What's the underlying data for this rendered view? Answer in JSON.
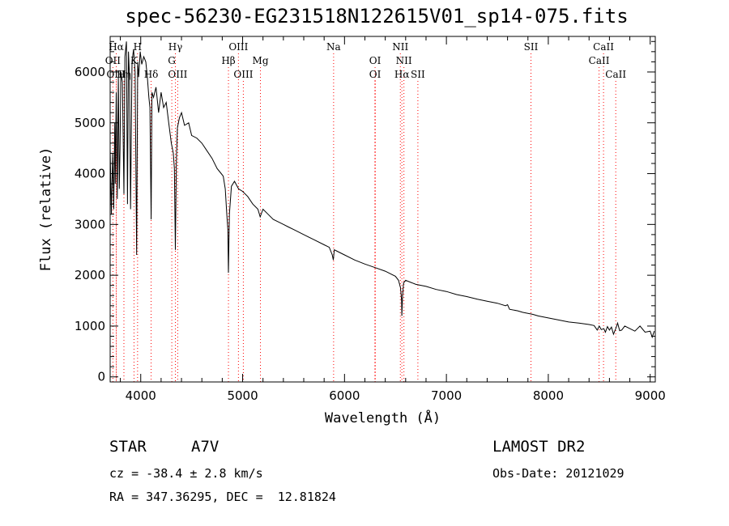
{
  "chart_data": {
    "type": "line",
    "title": "spec-56230-EG231518N122615V01_sp14-075.fits",
    "xlabel": "Wavelength (Å)",
    "ylabel": "Flux (relative)",
    "xlim": [
      3700,
      9050
    ],
    "ylim": [
      -100,
      6700
    ],
    "xticks": [
      4000,
      5000,
      6000,
      7000,
      8000,
      9000
    ],
    "yticks": [
      0,
      1000,
      2000,
      3000,
      4000,
      5000,
      6000
    ],
    "grid": false,
    "series": [
      {
        "color": "#000000",
        "x": [
          3700,
          3712,
          3725,
          3735,
          3745,
          3750,
          3760,
          3770,
          3780,
          3790,
          3797,
          3805,
          3820,
          3835,
          3845,
          3860,
          3870,
          3880,
          3890,
          3900,
          3915,
          3930,
          3945,
          3960,
          3970,
          3980,
          3995,
          4010,
          4030,
          4050,
          4065,
          4080,
          4090,
          4102,
          4110,
          4125,
          4150,
          4175,
          4200,
          4225,
          4250,
          4275,
          4300,
          4320,
          4330,
          4340,
          4350,
          4360,
          4380,
          4400,
          4430,
          4470,
          4500,
          4550,
          4600,
          4650,
          4700,
          4750,
          4790,
          4810,
          4830,
          4845,
          4855,
          4861,
          4870,
          4890,
          4920,
          4960,
          5000,
          5050,
          5100,
          5150,
          5172,
          5200,
          5250,
          5300,
          5350,
          5400,
          5450,
          5500,
          5600,
          5700,
          5800,
          5850,
          5880,
          5890,
          5900,
          5920,
          6000,
          6100,
          6200,
          6300,
          6400,
          6500,
          6530,
          6550,
          6560,
          6563,
          6570,
          6580,
          6600,
          6700,
          6800,
          6900,
          7000,
          7100,
          7200,
          7300,
          7400,
          7500,
          7580,
          7600,
          7620,
          7700,
          7750,
          7800,
          7850,
          7900,
          8000,
          8100,
          8200,
          8300,
          8400,
          8450,
          8480,
          8500,
          8520,
          8545,
          8560,
          8580,
          8600,
          8620,
          8640,
          8662,
          8680,
          8700,
          8720,
          8750,
          8800,
          8850,
          8900,
          8950,
          9000,
          9020,
          9040
        ],
        "y": [
          4500,
          3200,
          4400,
          3300,
          5000,
          3800,
          5600,
          3500,
          5900,
          3700,
          4500,
          6000,
          5800,
          3600,
          6300,
          6600,
          3400,
          6400,
          5900,
          3300,
          6200,
          6450,
          6000,
          2400,
          6200,
          5900,
          6400,
          6150,
          6300,
          6200,
          5900,
          5500,
          5300,
          3100,
          5600,
          5500,
          5700,
          5200,
          5600,
          5300,
          5400,
          5000,
          4600,
          4400,
          4100,
          2500,
          4300,
          4900,
          5100,
          5200,
          4950,
          5000,
          4750,
          4700,
          4600,
          4450,
          4300,
          4100,
          4000,
          3950,
          3700,
          3200,
          2900,
          2050,
          3200,
          3750,
          3850,
          3700,
          3650,
          3550,
          3400,
          3300,
          3150,
          3300,
          3200,
          3100,
          3050,
          3000,
          2950,
          2900,
          2800,
          2700,
          2600,
          2550,
          2400,
          2300,
          2500,
          2480,
          2400,
          2300,
          2220,
          2150,
          2080,
          1980,
          1900,
          1750,
          1500,
          1200,
          1600,
          1850,
          1900,
          1820,
          1780,
          1720,
          1680,
          1620,
          1580,
          1530,
          1490,
          1450,
          1400,
          1420,
          1330,
          1300,
          1270,
          1250,
          1230,
          1200,
          1160,
          1120,
          1080,
          1060,
          1030,
          1010,
          920,
          1000,
          930,
          950,
          880,
          990,
          920,
          980,
          840,
          950,
          1060,
          910,
          920,
          1000,
          950,
          900,
          1000,
          880,
          900,
          780,
          900
        ]
      }
    ],
    "line_markers": [
      {
        "label": "Hα",
        "wl": 3760,
        "color": "#ff0000",
        "row": 1
      },
      {
        "label": "OII",
        "wl": 3727,
        "color": "#ff0000",
        "row": 2
      },
      {
        "label": "OIII",
        "wl": 3760,
        "color": "#ff0000",
        "row": 3
      },
      {
        "label": "H",
        "wl": 3969,
        "color": "#ff0000",
        "row": 1
      },
      {
        "label": "K",
        "wl": 3934,
        "color": "#ff0000",
        "row": 2
      },
      {
        "label": "Hη",
        "wl": 3835,
        "color": "#ff0000",
        "row": 3
      },
      {
        "label": "Hδ",
        "wl": 4102,
        "color": "#ff0000",
        "row": 3
      },
      {
        "label": "Hγ",
        "wl": 4340,
        "color": "#ff0000",
        "row": 1
      },
      {
        "label": "G",
        "wl": 4305,
        "color": "#ff0000",
        "row": 2
      },
      {
        "label": "OIII",
        "wl": 4363,
        "color": "#ff0000",
        "row": 3
      },
      {
        "label": "OIII",
        "wl": 4959,
        "color": "#ff0000",
        "row": 1
      },
      {
        "label": "Hβ",
        "wl": 4861,
        "color": "#ff0000",
        "row": 2
      },
      {
        "label": "OIII",
        "wl": 5007,
        "color": "#ff0000",
        "row": 3
      },
      {
        "label": "Mg",
        "wl": 5175,
        "color": "#ff0000",
        "row": 2
      },
      {
        "label": "Na",
        "wl": 5893,
        "color": "#ff0000",
        "row": 1
      },
      {
        "label": "OI",
        "wl": 6300,
        "color": "#ff0000",
        "row": 2
      },
      {
        "label": "OI",
        "wl": 6300,
        "color": "#ff0000",
        "row": 3
      },
      {
        "label": "NII",
        "wl": 6548,
        "color": "#ff0000",
        "row": 1
      },
      {
        "label": "NII",
        "wl": 6583,
        "color": "#ff0000",
        "row": 2
      },
      {
        "label": "Hα",
        "wl": 6563,
        "color": "#ff0000",
        "row": 3
      },
      {
        "label": "SII",
        "wl": 6720,
        "color": "#ff0000",
        "row": 3
      },
      {
        "label": "SII",
        "wl": 7830,
        "color": "#ff0000",
        "row": 1
      },
      {
        "label": "CaII",
        "wl": 8542,
        "color": "#ff0000",
        "row": 1
      },
      {
        "label": "CaII",
        "wl": 8498,
        "color": "#ff0000",
        "row": 2
      },
      {
        "label": "CaII",
        "wl": 8662,
        "color": "#ff0000",
        "row": 3
      }
    ]
  },
  "info": {
    "object_class": "STAR",
    "subclass": "A7V",
    "cz": "cz = -38.4 ± 2.8 km/s",
    "radec": "RA = 347.36295, DEC =  12.81824",
    "survey": "LAMOST DR2",
    "obs_date": "Obs-Date: 20121029"
  }
}
